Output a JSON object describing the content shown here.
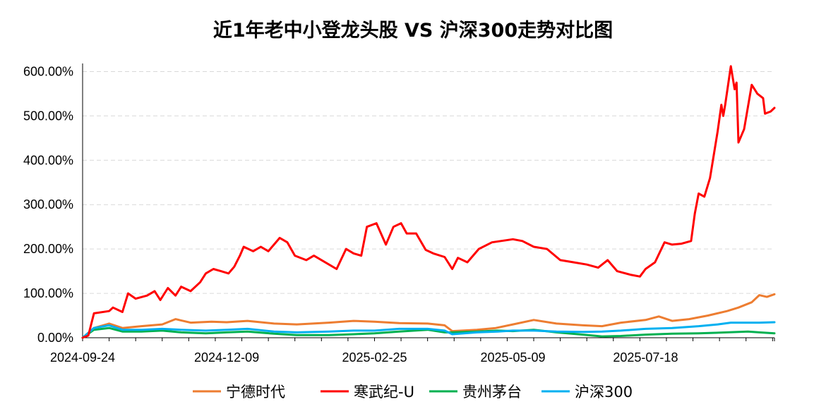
{
  "chart_data": {
    "type": "line",
    "title": "近1年老中小登龙头股 VS  沪深300走势对比图",
    "xlabel": "",
    "ylabel": "",
    "x_range": [
      "2024-09-24",
      "2025-09-24"
    ],
    "x_ticks": [
      "2024-09-24",
      "2024-12-09",
      "2025-02-25",
      "2025-05-09",
      "2025-07-18"
    ],
    "y_ticks": [
      "0.00%",
      "100.00%",
      "200.00%",
      "300.00%",
      "400.00%",
      "500.00%",
      "600.00%"
    ],
    "ylim": [
      0,
      615
    ],
    "grid": "horizontal-dashed",
    "legend_position": "bottom",
    "series": [
      {
        "name": "宁德时代",
        "color": "#ED7D31",
        "points": [
          [
            "2024-09-24",
            0
          ],
          [
            "2024-09-30",
            22
          ],
          [
            "2024-10-08",
            32
          ],
          [
            "2024-10-15",
            22
          ],
          [
            "2024-10-25",
            26
          ],
          [
            "2024-11-05",
            30
          ],
          [
            "2024-11-12",
            42
          ],
          [
            "2024-11-20",
            34
          ],
          [
            "2024-12-01",
            36
          ],
          [
            "2024-12-09",
            35
          ],
          [
            "2024-12-20",
            38
          ],
          [
            "2025-01-03",
            32
          ],
          [
            "2025-01-15",
            30
          ],
          [
            "2025-02-01",
            34
          ],
          [
            "2025-02-14",
            38
          ],
          [
            "2025-02-25",
            36
          ],
          [
            "2025-03-10",
            33
          ],
          [
            "2025-03-25",
            32
          ],
          [
            "2025-04-03",
            28
          ],
          [
            "2025-04-07",
            15
          ],
          [
            "2025-04-20",
            18
          ],
          [
            "2025-04-30",
            22
          ],
          [
            "2025-05-09",
            30
          ],
          [
            "2025-05-20",
            40
          ],
          [
            "2025-06-01",
            32
          ],
          [
            "2025-06-15",
            28
          ],
          [
            "2025-06-25",
            26
          ],
          [
            "2025-07-05",
            34
          ],
          [
            "2025-07-18",
            40
          ],
          [
            "2025-07-25",
            48
          ],
          [
            "2025-08-01",
            38
          ],
          [
            "2025-08-10",
            42
          ],
          [
            "2025-08-20",
            50
          ],
          [
            "2025-08-30",
            60
          ],
          [
            "2025-09-05",
            68
          ],
          [
            "2025-09-12",
            80
          ],
          [
            "2025-09-16",
            96
          ],
          [
            "2025-09-20",
            92
          ],
          [
            "2025-09-24",
            98
          ]
        ]
      },
      {
        "name": "寒武纪-U",
        "color": "#FF0000",
        "points": [
          [
            "2024-09-24",
            0
          ],
          [
            "2024-09-27",
            5
          ],
          [
            "2024-09-30",
            55
          ],
          [
            "2024-10-08",
            60
          ],
          [
            "2024-10-10",
            68
          ],
          [
            "2024-10-15",
            58
          ],
          [
            "2024-10-18",
            100
          ],
          [
            "2024-10-22",
            88
          ],
          [
            "2024-10-28",
            95
          ],
          [
            "2024-11-01",
            105
          ],
          [
            "2024-11-04",
            85
          ],
          [
            "2024-11-08",
            112
          ],
          [
            "2024-11-12",
            95
          ],
          [
            "2024-11-15",
            115
          ],
          [
            "2024-11-20",
            105
          ],
          [
            "2024-11-25",
            125
          ],
          [
            "2024-11-28",
            145
          ],
          [
            "2024-12-02",
            155
          ],
          [
            "2024-12-06",
            150
          ],
          [
            "2024-12-10",
            145
          ],
          [
            "2024-12-13",
            160
          ],
          [
            "2024-12-16",
            185
          ],
          [
            "2024-12-18",
            205
          ],
          [
            "2024-12-23",
            195
          ],
          [
            "2024-12-27",
            205
          ],
          [
            "2024-12-31",
            195
          ],
          [
            "2025-01-06",
            225
          ],
          [
            "2025-01-10",
            215
          ],
          [
            "2025-01-14",
            185
          ],
          [
            "2025-01-20",
            175
          ],
          [
            "2025-01-24",
            185
          ],
          [
            "2025-02-05",
            155
          ],
          [
            "2025-02-10",
            200
          ],
          [
            "2025-02-14",
            190
          ],
          [
            "2025-02-18",
            185
          ],
          [
            "2025-02-21",
            250
          ],
          [
            "2025-02-26",
            258
          ],
          [
            "2025-03-03",
            210
          ],
          [
            "2025-03-07",
            250
          ],
          [
            "2025-03-11",
            258
          ],
          [
            "2025-03-14",
            235
          ],
          [
            "2025-03-19",
            235
          ],
          [
            "2025-03-24",
            198
          ],
          [
            "2025-03-28",
            190
          ],
          [
            "2025-04-03",
            182
          ],
          [
            "2025-04-07",
            155
          ],
          [
            "2025-04-10",
            180
          ],
          [
            "2025-04-15",
            170
          ],
          [
            "2025-04-21",
            200
          ],
          [
            "2025-04-28",
            215
          ],
          [
            "2025-05-09",
            222
          ],
          [
            "2025-05-14",
            218
          ],
          [
            "2025-05-20",
            205
          ],
          [
            "2025-05-27",
            200
          ],
          [
            "2025-06-03",
            175
          ],
          [
            "2025-06-10",
            170
          ],
          [
            "2025-06-17",
            165
          ],
          [
            "2025-06-23",
            158
          ],
          [
            "2025-06-28",
            175
          ],
          [
            "2025-07-03",
            150
          ],
          [
            "2025-07-10",
            142
          ],
          [
            "2025-07-15",
            138
          ],
          [
            "2025-07-18",
            155
          ],
          [
            "2025-07-23",
            170
          ],
          [
            "2025-07-28",
            215
          ],
          [
            "2025-08-01",
            210
          ],
          [
            "2025-08-06",
            212
          ],
          [
            "2025-08-11",
            218
          ],
          [
            "2025-08-13",
            280
          ],
          [
            "2025-08-15",
            325
          ],
          [
            "2025-08-18",
            318
          ],
          [
            "2025-08-21",
            360
          ],
          [
            "2025-08-25",
            465
          ],
          [
            "2025-08-27",
            525
          ],
          [
            "2025-08-28",
            500
          ],
          [
            "2025-08-29",
            525
          ],
          [
            "2025-09-01",
            612
          ],
          [
            "2025-09-03",
            560
          ],
          [
            "2025-09-04",
            575
          ],
          [
            "2025-09-05",
            440
          ],
          [
            "2025-09-08",
            470
          ],
          [
            "2025-09-10",
            520
          ],
          [
            "2025-09-12",
            570
          ],
          [
            "2025-09-15",
            550
          ],
          [
            "2025-09-18",
            540
          ],
          [
            "2025-09-19",
            505
          ],
          [
            "2025-09-22",
            510
          ],
          [
            "2025-09-24",
            518
          ]
        ]
      },
      {
        "name": "贵州茅台",
        "color": "#00B050",
        "points": [
          [
            "2024-09-24",
            0
          ],
          [
            "2024-09-30",
            18
          ],
          [
            "2024-10-08",
            22
          ],
          [
            "2024-10-15",
            14
          ],
          [
            "2024-10-25",
            14
          ],
          [
            "2024-11-05",
            16
          ],
          [
            "2024-11-15",
            12
          ],
          [
            "2024-11-28",
            10
          ],
          [
            "2024-12-09",
            12
          ],
          [
            "2024-12-20",
            14
          ],
          [
            "2025-01-03",
            9
          ],
          [
            "2025-01-15",
            6
          ],
          [
            "2025-02-01",
            6
          ],
          [
            "2025-02-14",
            8
          ],
          [
            "2025-02-25",
            10
          ],
          [
            "2025-03-10",
            14
          ],
          [
            "2025-03-25",
            18
          ],
          [
            "2025-04-03",
            12
          ],
          [
            "2025-04-07",
            12
          ],
          [
            "2025-04-20",
            14
          ],
          [
            "2025-05-01",
            16
          ],
          [
            "2025-05-09",
            15
          ],
          [
            "2025-05-20",
            18
          ],
          [
            "2025-06-01",
            12
          ],
          [
            "2025-06-15",
            7
          ],
          [
            "2025-06-25",
            3
          ],
          [
            "2025-07-05",
            4
          ],
          [
            "2025-07-18",
            7
          ],
          [
            "2025-08-01",
            9
          ],
          [
            "2025-08-15",
            10
          ],
          [
            "2025-08-30",
            12
          ],
          [
            "2025-09-10",
            14
          ],
          [
            "2025-09-16",
            12
          ],
          [
            "2025-09-24",
            10
          ]
        ]
      },
      {
        "name": "沪深300",
        "color": "#00B0F0",
        "points": [
          [
            "2024-09-24",
            0
          ],
          [
            "2024-09-30",
            22
          ],
          [
            "2024-10-08",
            28
          ],
          [
            "2024-10-15",
            18
          ],
          [
            "2024-10-25",
            18
          ],
          [
            "2024-11-05",
            20
          ],
          [
            "2024-11-15",
            18
          ],
          [
            "2024-11-28",
            16
          ],
          [
            "2024-12-09",
            18
          ],
          [
            "2024-12-20",
            20
          ],
          [
            "2025-01-03",
            14
          ],
          [
            "2025-01-15",
            12
          ],
          [
            "2025-02-01",
            14
          ],
          [
            "2025-02-14",
            16
          ],
          [
            "2025-02-25",
            16
          ],
          [
            "2025-03-10",
            20
          ],
          [
            "2025-03-25",
            20
          ],
          [
            "2025-04-03",
            16
          ],
          [
            "2025-04-07",
            8
          ],
          [
            "2025-04-20",
            12
          ],
          [
            "2025-05-01",
            14
          ],
          [
            "2025-05-09",
            16
          ],
          [
            "2025-05-20",
            16
          ],
          [
            "2025-06-01",
            14
          ],
          [
            "2025-06-15",
            13
          ],
          [
            "2025-06-25",
            14
          ],
          [
            "2025-07-05",
            16
          ],
          [
            "2025-07-18",
            20
          ],
          [
            "2025-08-01",
            22
          ],
          [
            "2025-08-15",
            26
          ],
          [
            "2025-08-25",
            30
          ],
          [
            "2025-09-01",
            34
          ],
          [
            "2025-09-10",
            34
          ],
          [
            "2025-09-16",
            34
          ],
          [
            "2025-09-24",
            35
          ]
        ]
      }
    ]
  }
}
